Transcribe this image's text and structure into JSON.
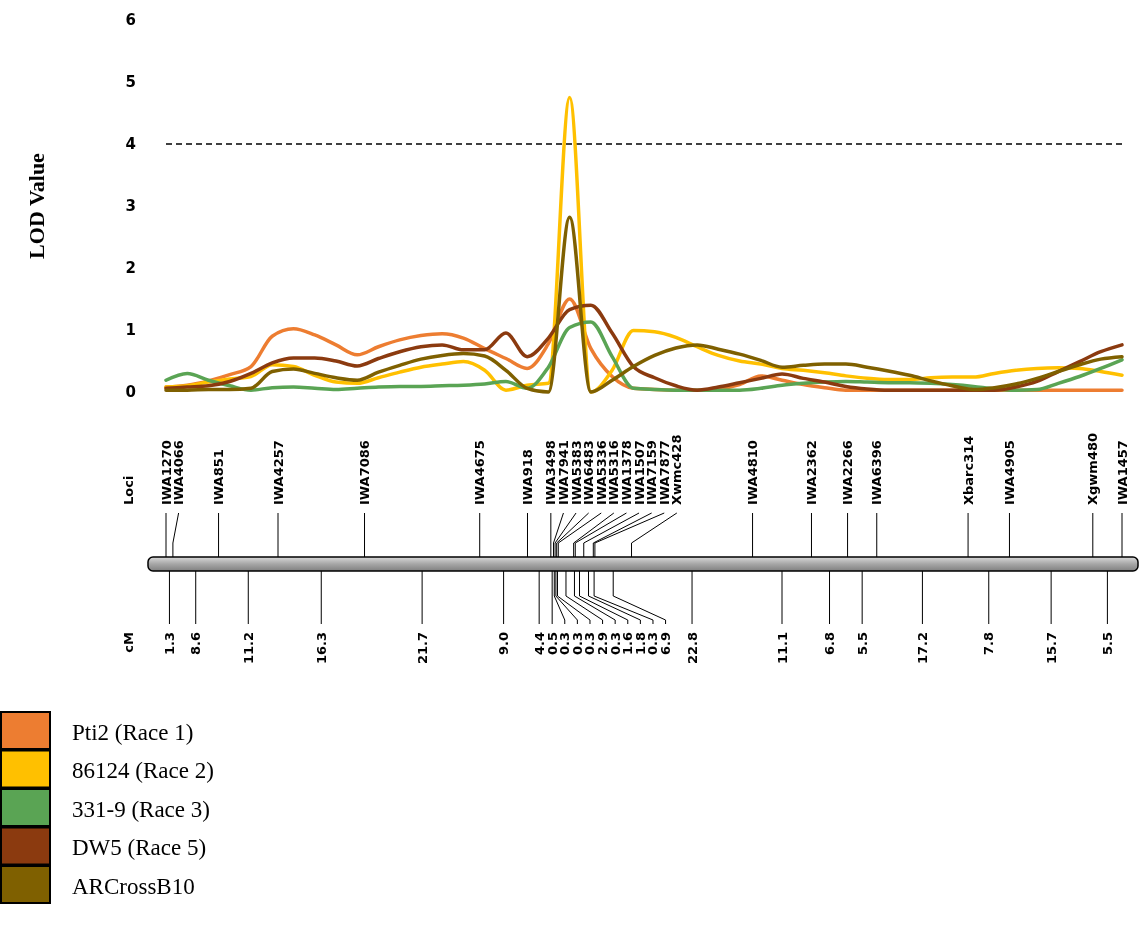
{
  "chart_data": [
    {
      "type": "line",
      "ylabel": "LOD Value",
      "categories": [
        null,
        null,
        null,
        null,
        null,
        null,
        null,
        null,
        null,
        null,
        null,
        null,
        null,
        null,
        null,
        null,
        null,
        null,
        null,
        null,
        null,
        null,
        null,
        null,
        null,
        null,
        null,
        null,
        null,
        null,
        null,
        null,
        null,
        null,
        null,
        null,
        null,
        null,
        null,
        null,
        null,
        null,
        null,
        null,
        null,
        null
      ],
      "series": [
        {
          "name": "Pti2 (Race 1)",
          "color": "#ed7d31",
          "values": [
            0.08,
            0.11,
            0.18,
            0.28,
            0.41,
            0.9,
            1.02,
            0.92,
            0.76,
            0.6,
            0.73,
            0.84,
            0.91,
            0.94,
            0.87,
            0.7,
            0.54,
            0.38,
            0.78,
            1.5,
            0.7,
            0.25,
            0.06,
            0.04,
            0.03,
            0.03,
            0.05,
            0.12,
            0.26,
            0.19,
            0.12,
            0.07,
            0.03,
            0.03,
            0.03,
            0.03,
            0.03,
            0.03,
            0.03,
            0.03,
            0.03,
            0.03,
            0.03,
            0.03,
            0.03,
            0.03
          ]
        },
        {
          "name": "86124 (Race 2)",
          "color": "#ffc000",
          "values": [
            0.08,
            0.1,
            0.16,
            0.21,
            0.25,
            0.44,
            0.41,
            0.27,
            0.16,
            0.14,
            0.23,
            0.32,
            0.4,
            0.45,
            0.49,
            0.35,
            0.03,
            0.11,
            0.14,
            4.75,
            0,
            0.35,
            0.99,
            0.97,
            0.88,
            0.73,
            0.59,
            0.5,
            0.45,
            0.38,
            0.35,
            0.31,
            0.26,
            0.22,
            0.2,
            0.2,
            0.23,
            0.24,
            0.24,
            0.3,
            0.35,
            0.38,
            0.39,
            0.38,
            0.33,
            0.27
          ]
        },
        {
          "name": "331-9 (Race 3)",
          "color": "#5aa454",
          "values": [
            0.19,
            0.3,
            0.19,
            0.1,
            0.03,
            0.07,
            0.08,
            0.06,
            0.04,
            0.06,
            0.08,
            0.09,
            0.09,
            0.1,
            0.11,
            0.13,
            0.17,
            0.06,
            0.4,
            1.04,
            1.13,
            0.57,
            0.06,
            0.04,
            0.03,
            0.03,
            0.03,
            0.03,
            0.06,
            0.11,
            0.14,
            0.16,
            0.17,
            0.16,
            0.15,
            0.15,
            0.14,
            0.12,
            0.09,
            0.05,
            0.03,
            0.04,
            0.14,
            0.25,
            0.38,
            0.52
          ]
        },
        {
          "name": "DW5 (Race 5)",
          "color": "#8b3a0f",
          "values": [
            0.06,
            0.08,
            0.1,
            0.17,
            0.3,
            0.47,
            0.55,
            0.55,
            0.5,
            0.42,
            0.54,
            0.65,
            0.73,
            0.76,
            0.68,
            0.68,
            0.95,
            0.57,
            0.87,
            1.33,
            1.4,
            0.95,
            0.41,
            0.23,
            0.1,
            0.03,
            0.08,
            0.15,
            0.22,
            0.29,
            0.22,
            0.16,
            0.09,
            0.05,
            0.03,
            0.03,
            0.03,
            0.03,
            0.03,
            0.03,
            0.08,
            0.17,
            0.33,
            0.49,
            0.65,
            0.76
          ]
        },
        {
          "name": "ARCrossB10",
          "color": "#7f6000",
          "values": [
            0.03,
            0.03,
            0.04,
            0.04,
            0.06,
            0.33,
            0.37,
            0.3,
            0.23,
            0.19,
            0.32,
            0.43,
            0.53,
            0.59,
            0.62,
            0.58,
            0.35,
            0.06,
            0,
            2.82,
            0,
            0.19,
            0.41,
            0.59,
            0.71,
            0.76,
            0.69,
            0.61,
            0.51,
            0.4,
            0.43,
            0.45,
            0.45,
            0.4,
            0.34,
            0.27,
            0.18,
            0.1,
            0.04,
            0.07,
            0.13,
            0.22,
            0.33,
            0.44,
            0.53,
            0.57
          ]
        }
      ],
      "ylim": [
        0,
        6
      ],
      "yticks": [
        0,
        1,
        2,
        3,
        4,
        5,
        6
      ],
      "tick_labels": "y",
      "ref_lines": [
        {
          "axis": "y",
          "value": 4,
          "color": "#000000",
          "line_style": "dashed"
        }
      ],
      "legend": "bottom left",
      "line_style": "solid"
    },
    {
      "type": "other",
      "xlabel": "Loci",
      "x2label": "cM",
      "categories": [
        "IWA1270",
        "IWA4066",
        "IWA851",
        "IWA4257",
        "IWA7086",
        "IWA4675",
        "IWA918",
        "IWA3498",
        "IWA7941",
        "IWA5383",
        "IWA6483",
        "IWA5336",
        "IWA5316",
        "IWA1378",
        "IWA1507",
        "IWA7159",
        "IWA7877",
        "Xwmc428",
        "IWA4810",
        "IWA2362",
        "IWA2266",
        "IWA6396",
        "Xbarc314",
        "IWA4905",
        "Xgwm480",
        "IWA1457"
      ],
      "values": [
        1.3,
        8.6,
        11.2,
        16.3,
        21.7,
        9.0,
        4.4,
        0.5,
        0.3,
        0.3,
        0.3,
        2.9,
        0.3,
        1.6,
        1.8,
        0.3,
        6.9,
        22.8,
        11.1,
        6.8,
        5.5,
        17.2,
        7.8,
        15.7,
        5.5,
        null
      ],
      "value_labels": [
        "1.3",
        "8.6",
        "11.2",
        "16.3",
        "21.7",
        "9.0",
        "4.4",
        "0.5",
        "0.3",
        "0.3",
        "0.3",
        "2.9",
        "0.3",
        "1.6",
        "1.8",
        "0.3",
        "6.9",
        "22.8",
        "11.1",
        "6.8",
        "5.5",
        "17.2",
        "7.8",
        "15.7",
        "5.5",
        null
      ]
    }
  ]
}
